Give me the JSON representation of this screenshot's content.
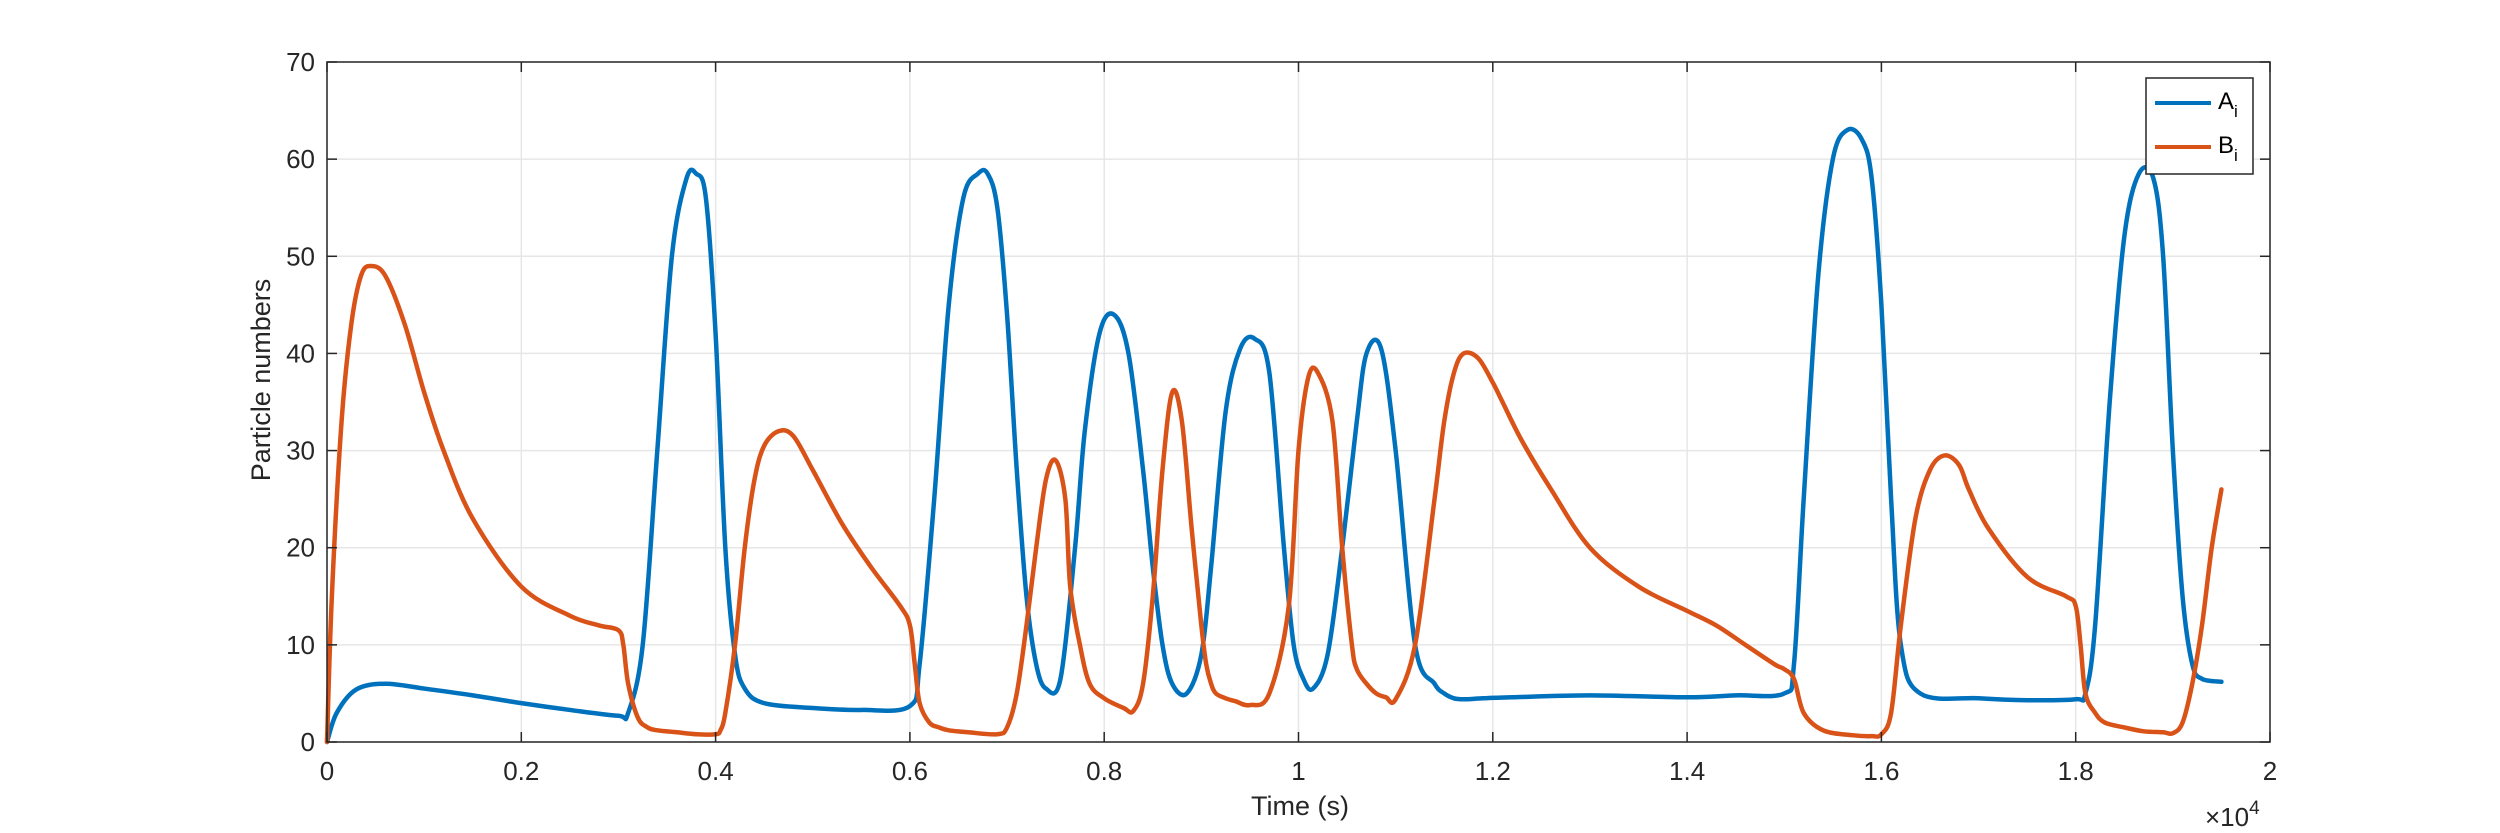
{
  "chart_data": {
    "type": "line",
    "xlabel": "Time (s)",
    "ylabel": "Particle numbers",
    "x_exponent_label": "×10",
    "x_exponent_power": "4",
    "xlim": [
      0,
      2
    ],
    "ylim": [
      0,
      70
    ],
    "xticks": [
      "0",
      "0.2",
      "0.4",
      "0.6",
      "0.8",
      "1",
      "1.2",
      "1.4",
      "1.6",
      "1.8",
      "2"
    ],
    "yticks": [
      "0",
      "10",
      "20",
      "30",
      "40",
      "50",
      "60",
      "70"
    ],
    "grid": true,
    "legend": {
      "placement": "top-right"
    },
    "series": [
      {
        "name": "A",
        "name_sub": "i",
        "color": "#0072BD",
        "x": [
          0,
          0.01,
          0.03,
          0.06,
          0.1,
          0.15,
          0.2,
          0.25,
          0.3,
          0.31,
          0.325,
          0.34,
          0.355,
          0.37,
          0.38,
          0.39,
          0.4,
          0.41,
          0.42,
          0.43,
          0.45,
          0.5,
          0.55,
          0.6,
          0.61,
          0.625,
          0.64,
          0.655,
          0.67,
          0.68,
          0.69,
          0.7,
          0.71,
          0.72,
          0.73,
          0.74,
          0.755,
          0.77,
          0.78,
          0.795,
          0.81,
          0.825,
          0.84,
          0.85,
          0.86,
          0.87,
          0.885,
          0.9,
          0.91,
          0.925,
          0.94,
          0.955,
          0.97,
          0.985,
          0.995,
          1.005,
          1.015,
          1.03,
          1.045,
          1.06,
          1.07,
          1.085,
          1.1,
          1.12,
          1.14,
          1.15,
          1.16,
          1.17,
          1.19,
          1.22,
          1.3,
          1.4,
          1.45,
          1.5,
          1.51,
          1.52,
          1.535,
          1.55,
          1.565,
          1.58,
          1.59,
          1.6,
          1.61,
          1.62,
          1.64,
          1.7,
          1.75,
          1.8,
          1.81,
          1.82,
          1.835,
          1.85,
          1.865,
          1.88,
          1.89,
          1.9,
          1.91,
          1.92,
          1.93,
          1.95
        ],
        "y": [
          0,
          3,
          5.4,
          6,
          5.5,
          4.8,
          4,
          3.3,
          2.7,
          3,
          10,
          30,
          50,
          58,
          58.5,
          56,
          42,
          20,
          9,
          5.5,
          4,
          3.5,
          3.3,
          3.7,
          8,
          25,
          45,
          56,
          58.5,
          58.5,
          55,
          44,
          28,
          15,
          8,
          5.5,
          6.5,
          20,
          32,
          42,
          44,
          40,
          28,
          18,
          10,
          6,
          5,
          9,
          18,
          34,
          40.5,
          41.5,
          38,
          20,
          10,
          6.5,
          5.5,
          9,
          20,
          33,
          40,
          40.5,
          30,
          10,
          6,
          5,
          4.5,
          4.4,
          4.5,
          4.6,
          4.8,
          4.6,
          4.8,
          5,
          8,
          25,
          48,
          60,
          63,
          62,
          58,
          45,
          25,
          10,
          5,
          4.5,
          4.3,
          4.4,
          5,
          12,
          35,
          52,
          58.5,
          58,
          50,
          30,
          15,
          8,
          6.5,
          6.2
        ]
      },
      {
        "name": "B",
        "name_sub": "i",
        "color": "#D95319",
        "x": [
          0,
          0.005,
          0.015,
          0.025,
          0.035,
          0.045,
          0.06,
          0.08,
          0.1,
          0.12,
          0.15,
          0.2,
          0.25,
          0.28,
          0.3,
          0.305,
          0.31,
          0.32,
          0.33,
          0.34,
          0.36,
          0.38,
          0.4,
          0.405,
          0.41,
          0.42,
          0.43,
          0.44,
          0.45,
          0.465,
          0.48,
          0.5,
          0.53,
          0.56,
          0.59,
          0.6,
          0.605,
          0.61,
          0.62,
          0.63,
          0.64,
          0.66,
          0.69,
          0.7,
          0.71,
          0.72,
          0.73,
          0.74,
          0.75,
          0.76,
          0.765,
          0.775,
          0.785,
          0.8,
          0.82,
          0.83,
          0.84,
          0.85,
          0.86,
          0.87,
          0.88,
          0.89,
          0.9,
          0.905,
          0.91,
          0.915,
          0.925,
          0.935,
          0.95,
          0.97,
          0.99,
          1.0,
          1.01,
          1.02,
          1.035,
          1.045,
          1.055,
          1.06,
          1.07,
          1.08,
          1.09,
          1.1,
          1.12,
          1.14,
          1.15,
          1.16,
          1.17,
          1.185,
          1.2,
          1.21,
          1.23,
          1.26,
          1.3,
          1.35,
          1.4,
          1.43,
          1.46,
          1.49,
          1.5,
          1.51,
          1.52,
          1.54,
          1.57,
          1.59,
          1.6,
          1.61,
          1.62,
          1.635,
          1.65,
          1.665,
          1.68,
          1.69,
          1.71,
          1.75,
          1.79,
          1.8,
          1.805,
          1.81,
          1.82,
          1.83,
          1.85,
          1.87,
          1.89,
          1.9,
          1.91,
          1.92,
          1.93,
          1.94,
          1.95
        ],
        "y": [
          0,
          15,
          33,
          43,
          48,
          49,
          48,
          43,
          36,
          30,
          23,
          16,
          13,
          12,
          11.5,
          10,
          6,
          2.5,
          1.5,
          1.2,
          1,
          0.8,
          0.8,
          1.2,
          3,
          10,
          20,
          27,
          30.5,
          32,
          31.5,
          28,
          22.5,
          18,
          14,
          12,
          8,
          4,
          2,
          1.5,
          1.2,
          1,
          0.8,
          1.5,
          5,
          12,
          20,
          27,
          29,
          25,
          16,
          10,
          6,
          4.5,
          3.5,
          3.2,
          6,
          15,
          28,
          36,
          33,
          22,
          12,
          8,
          6,
          5,
          4.5,
          4.2,
          3.8,
          5,
          14,
          30,
          37.5,
          38,
          33,
          20,
          10,
          7.5,
          6,
          5,
          4.6,
          4.4,
          10,
          25,
          33,
          38,
          40,
          39.5,
          37,
          35,
          31,
          26,
          20,
          16,
          13.5,
          12,
          10,
          8,
          7.5,
          6.5,
          3,
          1.2,
          0.7,
          0.6,
          0.8,
          3,
          12,
          23,
          28,
          29.5,
          28.5,
          26,
          22,
          17,
          15,
          14,
          10,
          5,
          3,
          2,
          1.5,
          1.1,
          1,
          0.9,
          2,
          6,
          12,
          20,
          26
        ]
      }
    ]
  }
}
